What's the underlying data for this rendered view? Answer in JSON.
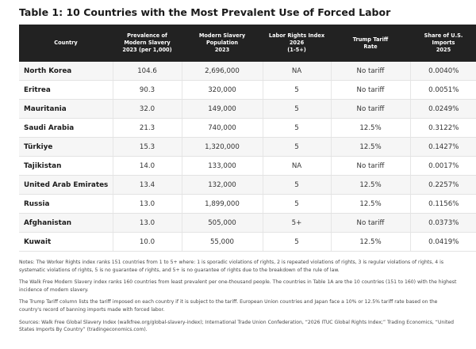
{
  "title": "Table 1:  10 Countries with the Most Prevalent Use of Forced Labor",
  "columns": [
    {
      "lines": [
        "Country"
      ]
    },
    {
      "lines": [
        "Prevalence of",
        "Modern Slavery",
        "2023 (per 1,000)"
      ]
    },
    {
      "lines": [
        "Modern Slavery",
        "Population",
        "2023"
      ]
    },
    {
      "lines": [
        "Labor Rights Index",
        "2026",
        "(1-5+)"
      ]
    },
    {
      "lines": [
        "Trump Tariff",
        "Rate"
      ]
    },
    {
      "lines": [
        "Share of U.S.",
        "Imports",
        "2025"
      ]
    }
  ],
  "rows": [
    {
      "country": "North Korea",
      "prevalence": "104.6",
      "population": "2,696,000",
      "labor_index": "NA",
      "tariff": "No tariff",
      "share": "0.0040%"
    },
    {
      "country": "Eritrea",
      "prevalence": "90.3",
      "population": "320,000",
      "labor_index": "5",
      "tariff": "No tariff",
      "share": "0.0051%"
    },
    {
      "country": "Mauritania",
      "prevalence": "32.0",
      "population": "149,000",
      "labor_index": "5",
      "tariff": "No tariff",
      "share": "0.0249%"
    },
    {
      "country": "Saudi Arabia",
      "prevalence": "21.3",
      "population": "740,000",
      "labor_index": "5",
      "tariff": "12.5%",
      "share": "0.3122%"
    },
    {
      "country": "Türkiye",
      "prevalence": "15.3",
      "population": "1,320,000",
      "labor_index": "5",
      "tariff": "12.5%",
      "share": "0.1427%"
    },
    {
      "country": "Tajikistan",
      "prevalence": "14.0",
      "population": "133,000",
      "labor_index": "NA",
      "tariff": "No tariff",
      "share": "0.0017%"
    },
    {
      "country": "United Arab Emirates",
      "prevalence": "13.4",
      "population": "132,000",
      "labor_index": "5",
      "tariff": "12.5%",
      "share": "0.2257%"
    },
    {
      "country": "Russia",
      "prevalence": "13.0",
      "population": "1,899,000",
      "labor_index": "5",
      "tariff": "12.5%",
      "share": "0.1156%"
    },
    {
      "country": "Afghanistan",
      "prevalence": "13.0",
      "population": "505,000",
      "labor_index": "5+",
      "tariff": "No tariff",
      "share": "0.0373%"
    },
    {
      "country": "Kuwait",
      "prevalence": "10.0",
      "population": "55,000",
      "labor_index": "5",
      "tariff": "12.5%",
      "share": "0.0419%"
    }
  ],
  "notes": [
    "Notes: The Worker Rights index ranks 151 countries from 1 to 5+ where: 1 is sporadic violations of rights, 2 is repeated violations of rights, 3 is regular violations of rights, 4 is systematic violations of rights, 5 is no guarantee of rights, and 5+ is no guarantee of rights due to the breakdown of the rule of law.",
    "The Walk Free Modern Slavery index ranks 160 countries from least prevalent per one-thousand people. The countries in Table 1A are the 10 countries (151 to 160) with the highest incidence of modern slavery.",
    "The Trump Tariff column lists the tariff imposed on each country if it is subject to the tariff. European Union countries and Japan face a 10% or 12.5% tariff rate based on the country's record of banning imports made with forced labor.",
    "Sources: Walk Free Global Slavery Index (walkfree.org/global-slavery-index); International Trade Union Confederation, “2026 ITUC Global Rights Index;” Trading Economics, “United States Imports By Country” (tradingeconomics.com)."
  ]
}
